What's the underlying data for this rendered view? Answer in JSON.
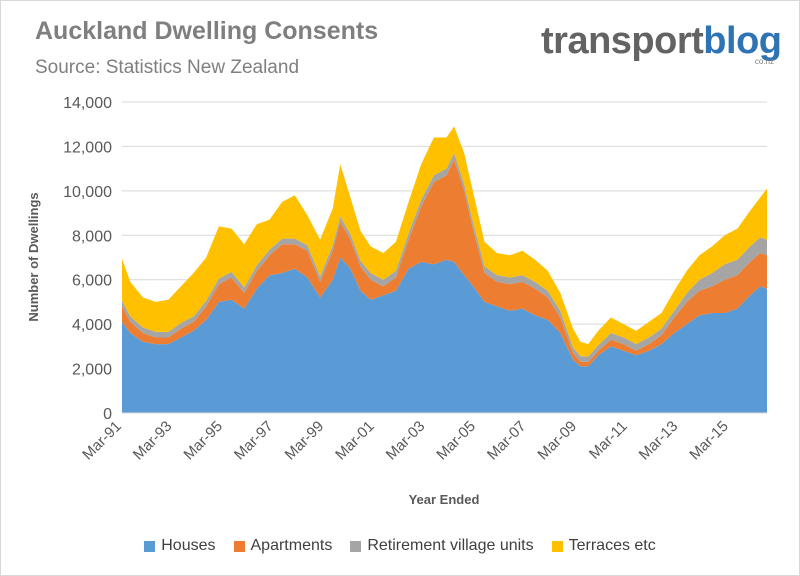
{
  "title": "Auckland Dwelling Consents",
  "subtitle": "Source: Statistics New Zealand",
  "brand": {
    "main_a": "transport",
    "main_b": "blog",
    "sub": "co.nz"
  },
  "chart_data": {
    "type": "area",
    "stacked": true,
    "title": "Auckland Dwelling Consents",
    "xlabel": "Year Ended",
    "ylabel": "Number of Dwellings",
    "ylim": [
      0,
      14000
    ],
    "yticks": [
      0,
      2000,
      4000,
      6000,
      8000,
      10000,
      12000,
      14000
    ],
    "ytick_labels": [
      "0",
      "2,000",
      "4,000",
      "6,000",
      "8,000",
      "10,000",
      "12,000",
      "14,000"
    ],
    "x_range": [
      1991.17,
      2016.67
    ],
    "xtick_labels": [
      "Mar-91",
      "Mar-93",
      "Mar-95",
      "Mar-97",
      "Mar-99",
      "Mar-01",
      "Mar-03",
      "Mar-05",
      "Mar-07",
      "Mar-09",
      "Mar-11",
      "Mar-13",
      "Mar-15"
    ],
    "xtick_years": [
      1991.17,
      1993.17,
      1995.17,
      1997.17,
      1999.17,
      2001.17,
      2003.17,
      2005.17,
      2007.17,
      2009.17,
      2011.17,
      2013.17,
      2015.17
    ],
    "grid": true,
    "legend_position": "bottom",
    "x": [
      1991.17,
      1991.5,
      1992.0,
      1992.5,
      1993.0,
      1993.5,
      1994.0,
      1994.5,
      1995.0,
      1995.5,
      1996.0,
      1996.5,
      1997.0,
      1997.5,
      1998.0,
      1998.5,
      1999.0,
      1999.5,
      1999.8,
      2000.2,
      2000.6,
      2001.0,
      2001.5,
      2002.0,
      2002.5,
      2003.0,
      2003.5,
      2004.0,
      2004.3,
      2004.7,
      2005.0,
      2005.5,
      2006.0,
      2006.5,
      2007.0,
      2007.5,
      2008.0,
      2008.5,
      2009.0,
      2009.3,
      2009.6,
      2010.0,
      2010.5,
      2011.0,
      2011.5,
      2012.0,
      2012.5,
      2013.0,
      2013.5,
      2014.0,
      2014.5,
      2015.0,
      2015.5,
      2016.0,
      2016.4,
      2016.67
    ],
    "series": [
      {
        "name": "Houses",
        "color": "#5b9bd5",
        "values": [
          4100,
          3600,
          3200,
          3100,
          3100,
          3400,
          3700,
          4200,
          5000,
          5100,
          4700,
          5600,
          6200,
          6300,
          6500,
          6100,
          5200,
          6000,
          7000,
          6500,
          5500,
          5100,
          5300,
          5500,
          6500,
          6800,
          6700,
          6900,
          6800,
          6200,
          5800,
          5000,
          4800,
          4600,
          4700,
          4400,
          4200,
          3600,
          2400,
          2100,
          2100,
          2600,
          3000,
          2800,
          2600,
          2800,
          3100,
          3600,
          4000,
          4400,
          4500,
          4500,
          4700,
          5300,
          5700,
          5600
        ]
      },
      {
        "name": "Apartments",
        "color": "#ed7d31",
        "values": [
          700,
          500,
          400,
          300,
          300,
          400,
          400,
          600,
          800,
          1000,
          700,
          800,
          900,
          1300,
          1100,
          1200,
          700,
          1300,
          1600,
          1300,
          1100,
          900,
          400,
          600,
          1300,
          2500,
          3700,
          3800,
          4600,
          3800,
          2700,
          1300,
          1100,
          1200,
          1200,
          1200,
          1000,
          700,
          300,
          200,
          200,
          200,
          300,
          300,
          200,
          300,
          400,
          700,
          1000,
          1100,
          1200,
          1500,
          1500,
          1500,
          1500,
          1500
        ]
      },
      {
        "name": "Retirement village units",
        "color": "#a5a5a5",
        "values": [
          250,
          250,
          250,
          250,
          250,
          250,
          250,
          250,
          250,
          250,
          250,
          250,
          250,
          250,
          250,
          250,
          250,
          250,
          250,
          250,
          250,
          300,
          300,
          300,
          300,
          300,
          300,
          300,
          300,
          300,
          300,
          300,
          300,
          300,
          300,
          300,
          300,
          300,
          250,
          250,
          250,
          250,
          300,
          300,
          300,
          300,
          300,
          300,
          400,
          500,
          600,
          700,
          700,
          700,
          700,
          700
        ]
      },
      {
        "name": "Terraces etc",
        "color": "#ffc000",
        "values": [
          1900,
          1550,
          1350,
          1350,
          1450,
          1650,
          1950,
          1950,
          2350,
          1950,
          1950,
          1850,
          1350,
          1650,
          1950,
          1350,
          1650,
          1650,
          2350,
          1650,
          1350,
          1200,
          1200,
          1300,
          1400,
          1600,
          1700,
          1400,
          1200,
          1400,
          1400,
          1100,
          1000,
          1000,
          1100,
          1000,
          900,
          800,
          850,
          650,
          550,
          650,
          700,
          600,
          600,
          700,
          700,
          900,
          1000,
          1100,
          1200,
          1300,
          1400,
          1600,
          1800,
          2300
        ]
      }
    ]
  }
}
